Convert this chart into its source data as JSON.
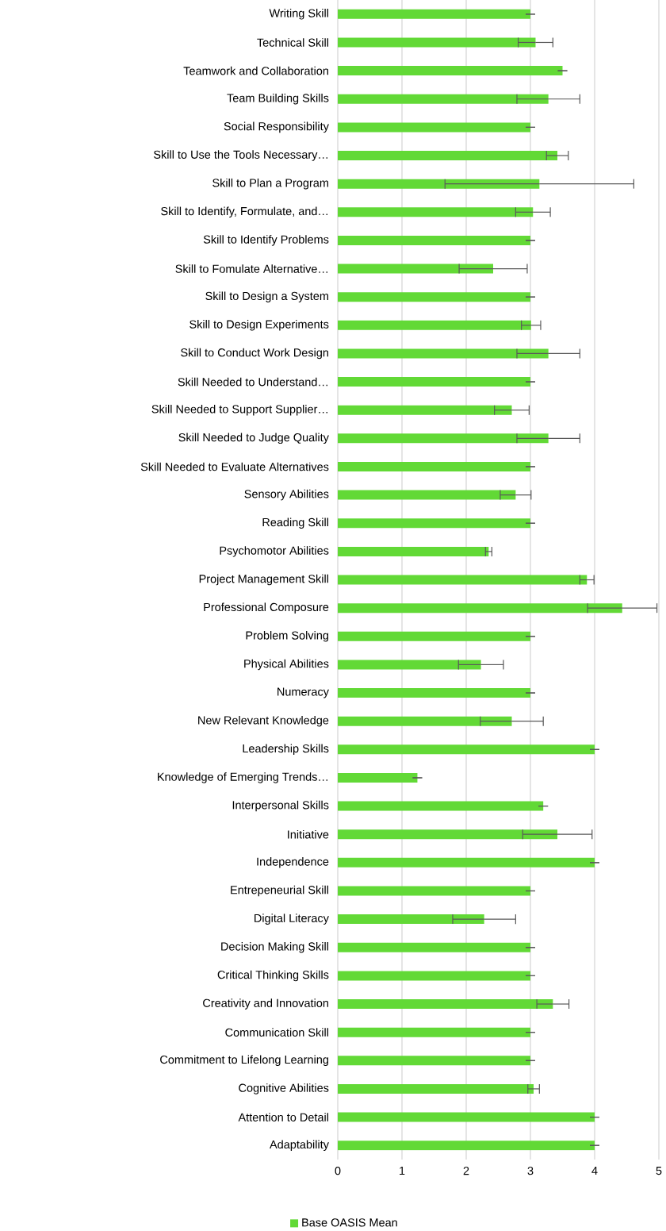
{
  "chart_data": {
    "type": "bar",
    "orientation": "horizontal",
    "categories": [
      "Writing Skill",
      "Technical Skill",
      "Teamwork and Collaboration",
      "Team Building Skills",
      "Social Responsibility",
      "Skill to Use the Tools Necessary…",
      "Skill to Plan a Program",
      "Skill to Identify, Formulate, and…",
      "Skill to Identify Problems",
      "Skill to Fomulate Alternative…",
      "Skill to Design a System",
      "Skill to Design Experiments",
      "Skill to Conduct Work Design",
      "Skill Needed to Understand…",
      "Skill Needed to Support Supplier…",
      "Skill Needed to Judge Quality",
      "Skill Needed to Evaluate Alternatives",
      "Sensory Abilities",
      "Reading Skill",
      "Psychomotor Abilities",
      "Project Management Skill",
      "Professional Composure",
      "Problem Solving",
      "Physical Abilities",
      "Numeracy",
      "New Relevant Knowledge",
      "Leadership Skills",
      "Knowledge of Emerging Trends…",
      "Interpersonal Skills",
      "Initiative",
      "Independence",
      "Entrepeneurial Skill",
      "Digital Literacy",
      "Decision Making Skill",
      "Critical Thinking Skills",
      "Creativity and Innovation",
      "Communication Skill",
      "Commitment to Lifelong Learning",
      "Cognitive Abilities",
      "Attention to Detail",
      "Adaptability"
    ],
    "series": [
      {
        "name": "Base OASIS Mean",
        "color": "#62d936",
        "values": [
          3.0,
          3.08,
          3.5,
          3.28,
          3.0,
          3.42,
          3.14,
          3.04,
          3.0,
          2.42,
          3.0,
          3.01,
          3.28,
          3.0,
          2.71,
          3.28,
          3.0,
          2.77,
          3.0,
          2.35,
          3.88,
          4.43,
          3.0,
          2.23,
          3.0,
          2.71,
          4.0,
          1.24,
          3.2,
          3.42,
          4.0,
          3.0,
          2.28,
          3.0,
          3.0,
          3.35,
          3.0,
          3.0,
          3.05,
          4.0,
          4.0
        ],
        "errors": [
          0,
          0.27,
          0,
          0.49,
          0,
          0.17,
          1.47,
          0.27,
          0,
          0.53,
          0,
          0.15,
          0.49,
          0,
          0.27,
          0.49,
          0,
          0.24,
          0,
          0.05,
          0.11,
          0.54,
          0,
          0.35,
          0,
          0.49,
          0,
          0,
          0,
          0.54,
          0,
          0,
          0.49,
          0,
          0,
          0.25,
          0,
          0,
          0.09,
          0,
          0
        ]
      }
    ],
    "xlim": [
      0,
      5
    ],
    "xticks": [
      0,
      1,
      2,
      3,
      4,
      5
    ],
    "grid": "x",
    "legend": "bottom"
  }
}
